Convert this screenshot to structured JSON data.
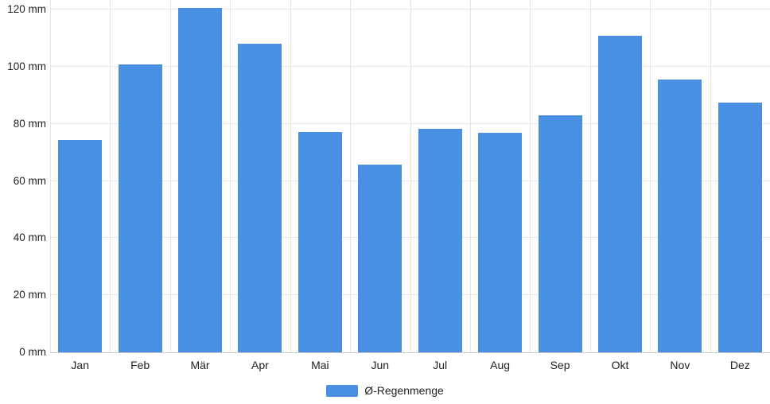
{
  "chart_data": {
    "type": "bar",
    "title": "",
    "categories": [
      "Jan",
      "Feb",
      "Mär",
      "Apr",
      "Mai",
      "Jun",
      "Jul",
      "Aug",
      "Sep",
      "Okt",
      "Nov",
      "Dez"
    ],
    "series": [
      {
        "name": "Ø-Regenmenge",
        "values": [
          74.5,
          100.8,
          120.5,
          108,
          77.3,
          65.8,
          78.4,
          77,
          83,
          110.9,
          95.6,
          87.4
        ]
      }
    ],
    "unit": "mm",
    "xlabel": "",
    "ylabel": "",
    "y_ticks": [
      0,
      20,
      40,
      60,
      80,
      100,
      120
    ],
    "y_tick_labels": [
      "0 mm",
      "20 mm",
      "40 mm",
      "60 mm",
      "80 mm",
      "100 mm",
      "120 mm"
    ],
    "ylim": [
      0,
      123.4
    ],
    "grid": true,
    "legend_position": "bottom",
    "colors": {
      "bar": "#4a90e2",
      "grid": "#e6e6e6",
      "axis": "#c9c9c9",
      "text": "#222222"
    }
  }
}
